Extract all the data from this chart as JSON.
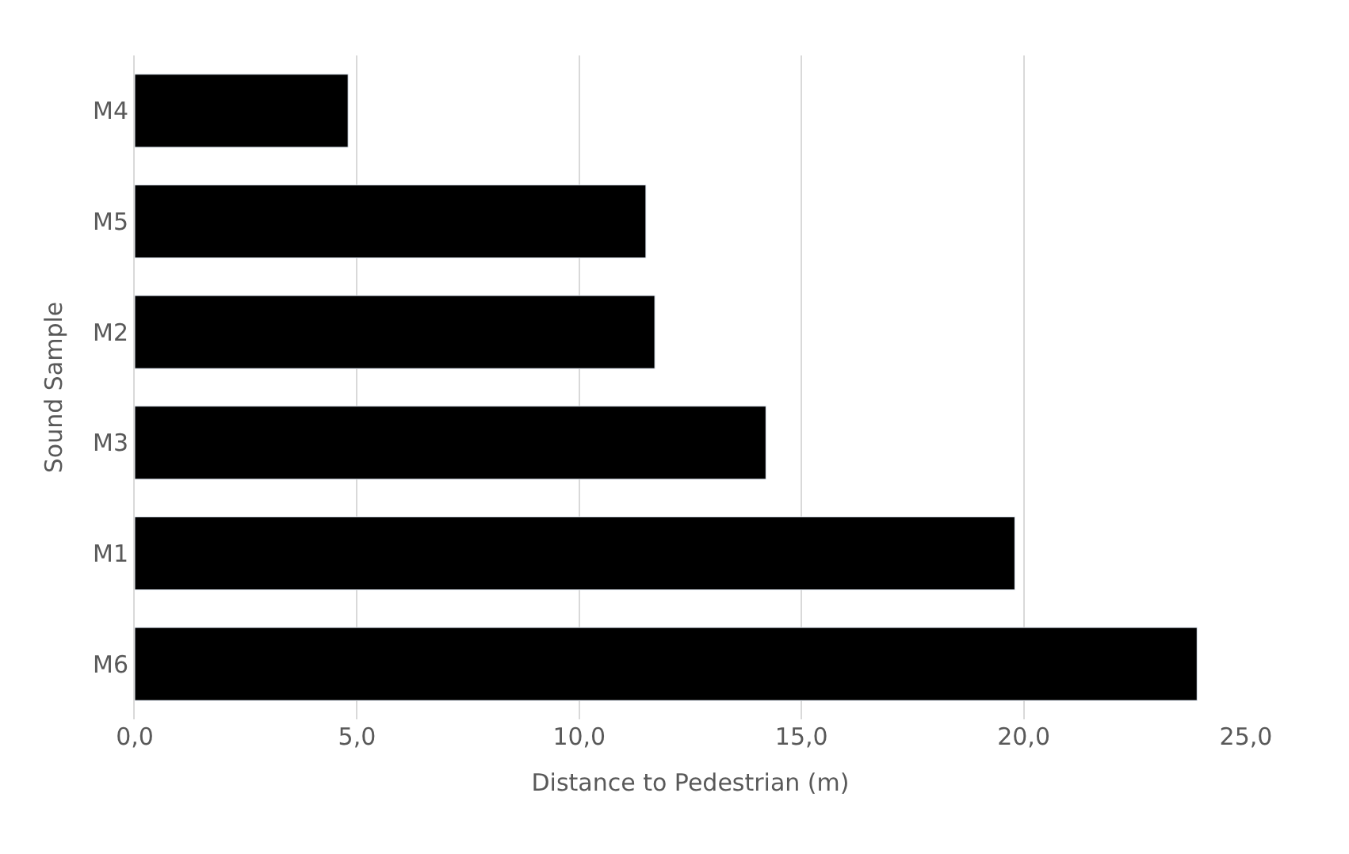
{
  "chart_data": {
    "type": "bar",
    "orientation": "horizontal",
    "xlabel": "Distance to Pedestrian (m)",
    "ylabel": "Sound Sample",
    "categories": [
      "M4",
      "M5",
      "M2",
      "M3",
      "M1",
      "M6"
    ],
    "values": [
      4.8,
      11.5,
      11.7,
      14.2,
      19.8,
      23.9
    ],
    "color": "#000000",
    "xlim": [
      0,
      25
    ],
    "xticks": [
      {
        "value": 0,
        "label": "0,0"
      },
      {
        "value": 5,
        "label": "5,0"
      },
      {
        "value": 10,
        "label": "10,0"
      },
      {
        "value": 15,
        "label": "15,0"
      },
      {
        "value": 20,
        "label": "20,0"
      },
      {
        "value": 25,
        "label": "25,0"
      }
    ],
    "grid": "x"
  }
}
